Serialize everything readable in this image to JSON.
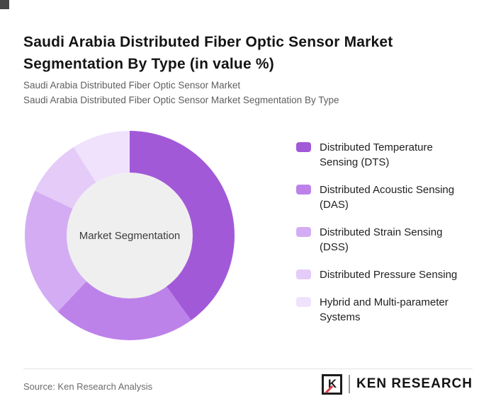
{
  "header": {
    "title": "Saudi Arabia Distributed Fiber Optic Sensor Market Segmentation By Type (in value %)",
    "subtitle1": "Saudi Arabia Distributed Fiber Optic Sensor Market",
    "subtitle2": "Saudi Arabia Distributed Fiber Optic Sensor Market Segmentation By Type"
  },
  "chart_data": {
    "type": "pie",
    "variant": "donut",
    "title": "Saudi Arabia Distributed Fiber Optic Sensor Market Segmentation By Type (in value %)",
    "center_label": "Market Segmentation",
    "categories": [
      "Distributed Temperature Sensing (DTS)",
      "Distributed Acoustic Sensing (DAS)",
      "Distributed Strain Sensing (DSS)",
      "Distributed Pressure Sensing",
      "Hybrid and Multi-parameter Systems"
    ],
    "values": [
      40,
      22,
      20,
      9,
      9
    ],
    "colors": [
      "#A259D8",
      "#BC82EA",
      "#D4ACF3",
      "#E4CBF8",
      "#F0E2FC"
    ],
    "hole_color": "#EFEFEF",
    "legend_position": "right",
    "start_angle_deg": 0,
    "direction": "clockwise"
  },
  "footer": {
    "source": "Source: Ken Research Analysis",
    "logo": {
      "k": "K",
      "brand": "KEN RESEARCH"
    }
  }
}
